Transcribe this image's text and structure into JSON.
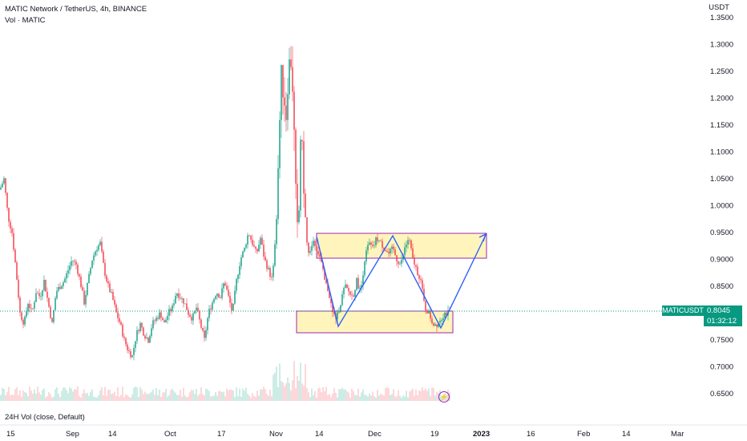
{
  "header": {
    "title": "MATIC Network / TetherUS, 4h, BINANCE",
    "volume_indicator": "Vol · MATIC",
    "currency": "USDT"
  },
  "price_tag": {
    "symbol": "MATICUSDT",
    "price": "0.8045",
    "countdown": "01:32:12"
  },
  "volume_label": "24H Vol (close, Default)",
  "flash_icon": "lightning-icon",
  "colors": {
    "up": "#089981",
    "down": "#f23645",
    "box_fill": "#fff3b0",
    "box_border": "#9c27b0",
    "pattern_line": "#2962ff",
    "tag_bg": "#089981"
  },
  "chart_data": {
    "type": "candlestick",
    "title": "MATIC Network / TetherUS, 4h, BINANCE",
    "y_ticks": [
      "1.3500",
      "1.3000",
      "1.2500",
      "1.2000",
      "1.1500",
      "1.1000",
      "1.0500",
      "1.0000",
      "0.9500",
      "0.9000",
      "0.8500",
      "0.8000",
      "0.7500",
      "0.7000",
      "0.6500"
    ],
    "ylim": [
      0.63,
      1.36
    ],
    "x_ticks": [
      "15",
      "Sep",
      "14",
      "Oct",
      "17",
      "Nov",
      "14",
      "Dec",
      "19",
      "2023",
      "16",
      "Feb",
      "14",
      "Mar"
    ],
    "last_price": 0.8045,
    "price_path": [
      [
        0,
        1.03
      ],
      [
        5,
        1.05
      ],
      [
        10,
        0.98
      ],
      [
        15,
        0.95
      ],
      [
        20,
        0.88
      ],
      [
        25,
        0.8
      ],
      [
        30,
        0.78
      ],
      [
        35,
        0.82
      ],
      [
        40,
        0.8
      ],
      [
        45,
        0.84
      ],
      [
        50,
        0.83
      ],
      [
        55,
        0.86
      ],
      [
        60,
        0.82
      ],
      [
        65,
        0.78
      ],
      [
        70,
        0.84
      ],
      [
        75,
        0.85
      ],
      [
        80,
        0.86
      ],
      [
        85,
        0.88
      ],
      [
        90,
        0.9
      ],
      [
        95,
        0.89
      ],
      [
        100,
        0.86
      ],
      [
        105,
        0.82
      ],
      [
        110,
        0.86
      ],
      [
        115,
        0.9
      ],
      [
        120,
        0.92
      ],
      [
        125,
        0.93
      ],
      [
        130,
        0.88
      ],
      [
        135,
        0.85
      ],
      [
        140,
        0.83
      ],
      [
        145,
        0.8
      ],
      [
        150,
        0.78
      ],
      [
        155,
        0.75
      ],
      [
        160,
        0.73
      ],
      [
        165,
        0.72
      ],
      [
        170,
        0.76
      ],
      [
        175,
        0.78
      ],
      [
        180,
        0.76
      ],
      [
        185,
        0.75
      ],
      [
        190,
        0.78
      ],
      [
        195,
        0.79
      ],
      [
        200,
        0.8
      ],
      [
        205,
        0.78
      ],
      [
        210,
        0.8
      ],
      [
        215,
        0.81
      ],
      [
        220,
        0.84
      ],
      [
        225,
        0.83
      ],
      [
        230,
        0.82
      ],
      [
        235,
        0.8
      ],
      [
        240,
        0.79
      ],
      [
        245,
        0.81
      ],
      [
        250,
        0.78
      ],
      [
        255,
        0.75
      ],
      [
        260,
        0.8
      ],
      [
        265,
        0.82
      ],
      [
        270,
        0.84
      ],
      [
        275,
        0.83
      ],
      [
        280,
        0.86
      ],
      [
        285,
        0.83
      ],
      [
        290,
        0.8
      ],
      [
        295,
        0.86
      ],
      [
        300,
        0.9
      ],
      [
        305,
        0.92
      ],
      [
        310,
        0.95
      ],
      [
        315,
        0.93
      ],
      [
        320,
        0.91
      ],
      [
        325,
        0.94
      ],
      [
        330,
        0.9
      ],
      [
        335,
        0.88
      ],
      [
        340,
        0.86
      ],
      [
        345,
        0.98
      ],
      [
        348,
        1.12
      ],
      [
        351,
        1.24
      ],
      [
        354,
        1.21
      ],
      [
        357,
        1.17
      ],
      [
        360,
        1.26
      ],
      [
        363,
        1.27
      ],
      [
        366,
        1.2
      ],
      [
        368,
        1.06
      ],
      [
        370,
        0.98
      ],
      [
        372,
        0.92
      ],
      [
        375,
        1.13
      ],
      [
        378,
        1.08
      ],
      [
        380,
        1.0
      ],
      [
        383,
        0.93
      ],
      [
        386,
        0.9
      ],
      [
        390,
        0.94
      ],
      [
        395,
        0.92
      ],
      [
        400,
        0.9
      ],
      [
        405,
        0.86
      ],
      [
        410,
        0.84
      ],
      [
        415,
        0.8
      ],
      [
        420,
        0.79
      ],
      [
        425,
        0.82
      ],
      [
        430,
        0.85
      ],
      [
        435,
        0.84
      ],
      [
        440,
        0.83
      ],
      [
        445,
        0.86
      ],
      [
        450,
        0.84
      ],
      [
        455,
        0.9
      ],
      [
        460,
        0.93
      ],
      [
        465,
        0.92
      ],
      [
        470,
        0.94
      ],
      [
        475,
        0.93
      ],
      [
        480,
        0.92
      ],
      [
        485,
        0.91
      ],
      [
        490,
        0.92
      ],
      [
        495,
        0.9
      ],
      [
        500,
        0.89
      ],
      [
        505,
        0.92
      ],
      [
        510,
        0.94
      ],
      [
        515,
        0.9
      ],
      [
        520,
        0.88
      ],
      [
        525,
        0.86
      ],
      [
        530,
        0.81
      ],
      [
        535,
        0.8
      ],
      [
        540,
        0.78
      ],
      [
        545,
        0.78
      ],
      [
        550,
        0.79
      ],
      [
        555,
        0.8
      ],
      [
        560,
        0.8
      ]
    ],
    "annotations": {
      "support_box": {
        "price_low": 0.766,
        "price_high": 0.806
      },
      "resistance_box": {
        "price_low": 0.902,
        "price_high": 0.95
      },
      "pattern_points": [
        [
          0.95,
          "Nov 14"
        ],
        [
          0.77,
          "Nov 21"
        ],
        [
          0.944,
          "Dec 5"
        ],
        [
          0.77,
          "Dec 21"
        ],
        [
          0.945,
          "2023"
        ]
      ]
    }
  }
}
